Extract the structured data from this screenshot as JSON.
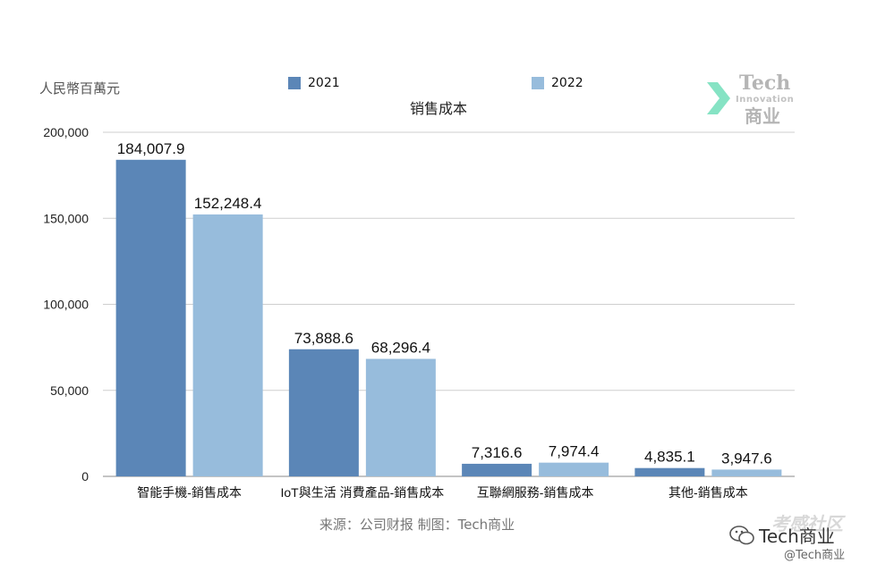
{
  "unit_label": "人民幣百萬元",
  "source_text": "来源：公司财报 制图：Tech商业",
  "logo": {
    "line1": "Tech",
    "line2": "Innovation",
    "line3": "商业"
  },
  "watermark": {
    "top": "考感社区",
    "main": "Tech商业",
    "handle": "@Tech商业"
  },
  "colors": {
    "series_2021": "#5b86b7",
    "series_2022": "#97bcdc",
    "grid": "#cfcfcf",
    "axis": "#888888"
  },
  "chart_data": {
    "type": "bar",
    "title": "销售成本",
    "categories": [
      "智能手機-銷售成本",
      "IoT與生活 消費產品-銷售成本",
      "互聯網服務-銷售成本",
      "其他-銷售成本"
    ],
    "series": [
      {
        "name": "2021",
        "values": [
          184007.9,
          73888.6,
          7316.6,
          4835.1
        ],
        "labels": [
          "184,007.9",
          "73,888.6",
          "7,316.6",
          "4,835.1"
        ]
      },
      {
        "name": "2022",
        "values": [
          152248.4,
          68296.4,
          7974.4,
          3947.6
        ],
        "labels": [
          "152,248.4",
          "68,296.4",
          "7,974.4",
          "3,947.6"
        ]
      }
    ],
    "ylim": [
      0,
      200000
    ],
    "yticks": [
      0,
      50000,
      100000,
      150000,
      200000
    ],
    "ytick_labels": [
      "0",
      "50,000",
      "100,000",
      "150,000",
      "200,000"
    ],
    "grid": true,
    "legend_position": "top"
  }
}
